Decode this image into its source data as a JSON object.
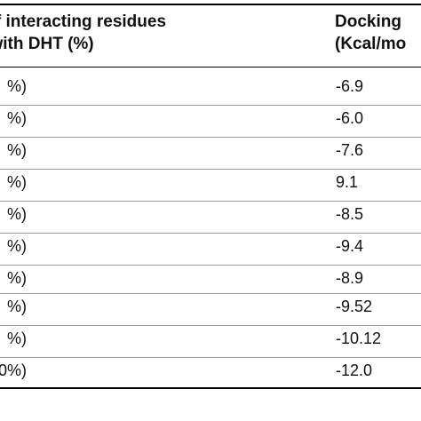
{
  "header": {
    "col1_line1": "er of interacting residues",
    "col1_line2": "on with DHT (%)",
    "col2_line1": "Docking",
    "col2_line2": "(Kcal/mo"
  },
  "rows": [
    {
      "col1": "%)",
      "col2": "-6.9"
    },
    {
      "col1": "%)",
      "col2": "-6.0"
    },
    {
      "col1": "%)",
      "col2": "-7.6"
    },
    {
      "col1": "%)",
      "col2": "9.1"
    },
    {
      "col1": "%)",
      "col2": "-8.5"
    },
    {
      "col1": "%)",
      "col2": "-9.4"
    },
    {
      "col1": "%)",
      "col2": "-8.9"
    },
    {
      "col1": "%)",
      "col2": "-9.52"
    },
    {
      "col1": "%)",
      "col2": "-10.12"
    },
    {
      "col1": "0%)",
      "col2": "-12.0"
    }
  ]
}
